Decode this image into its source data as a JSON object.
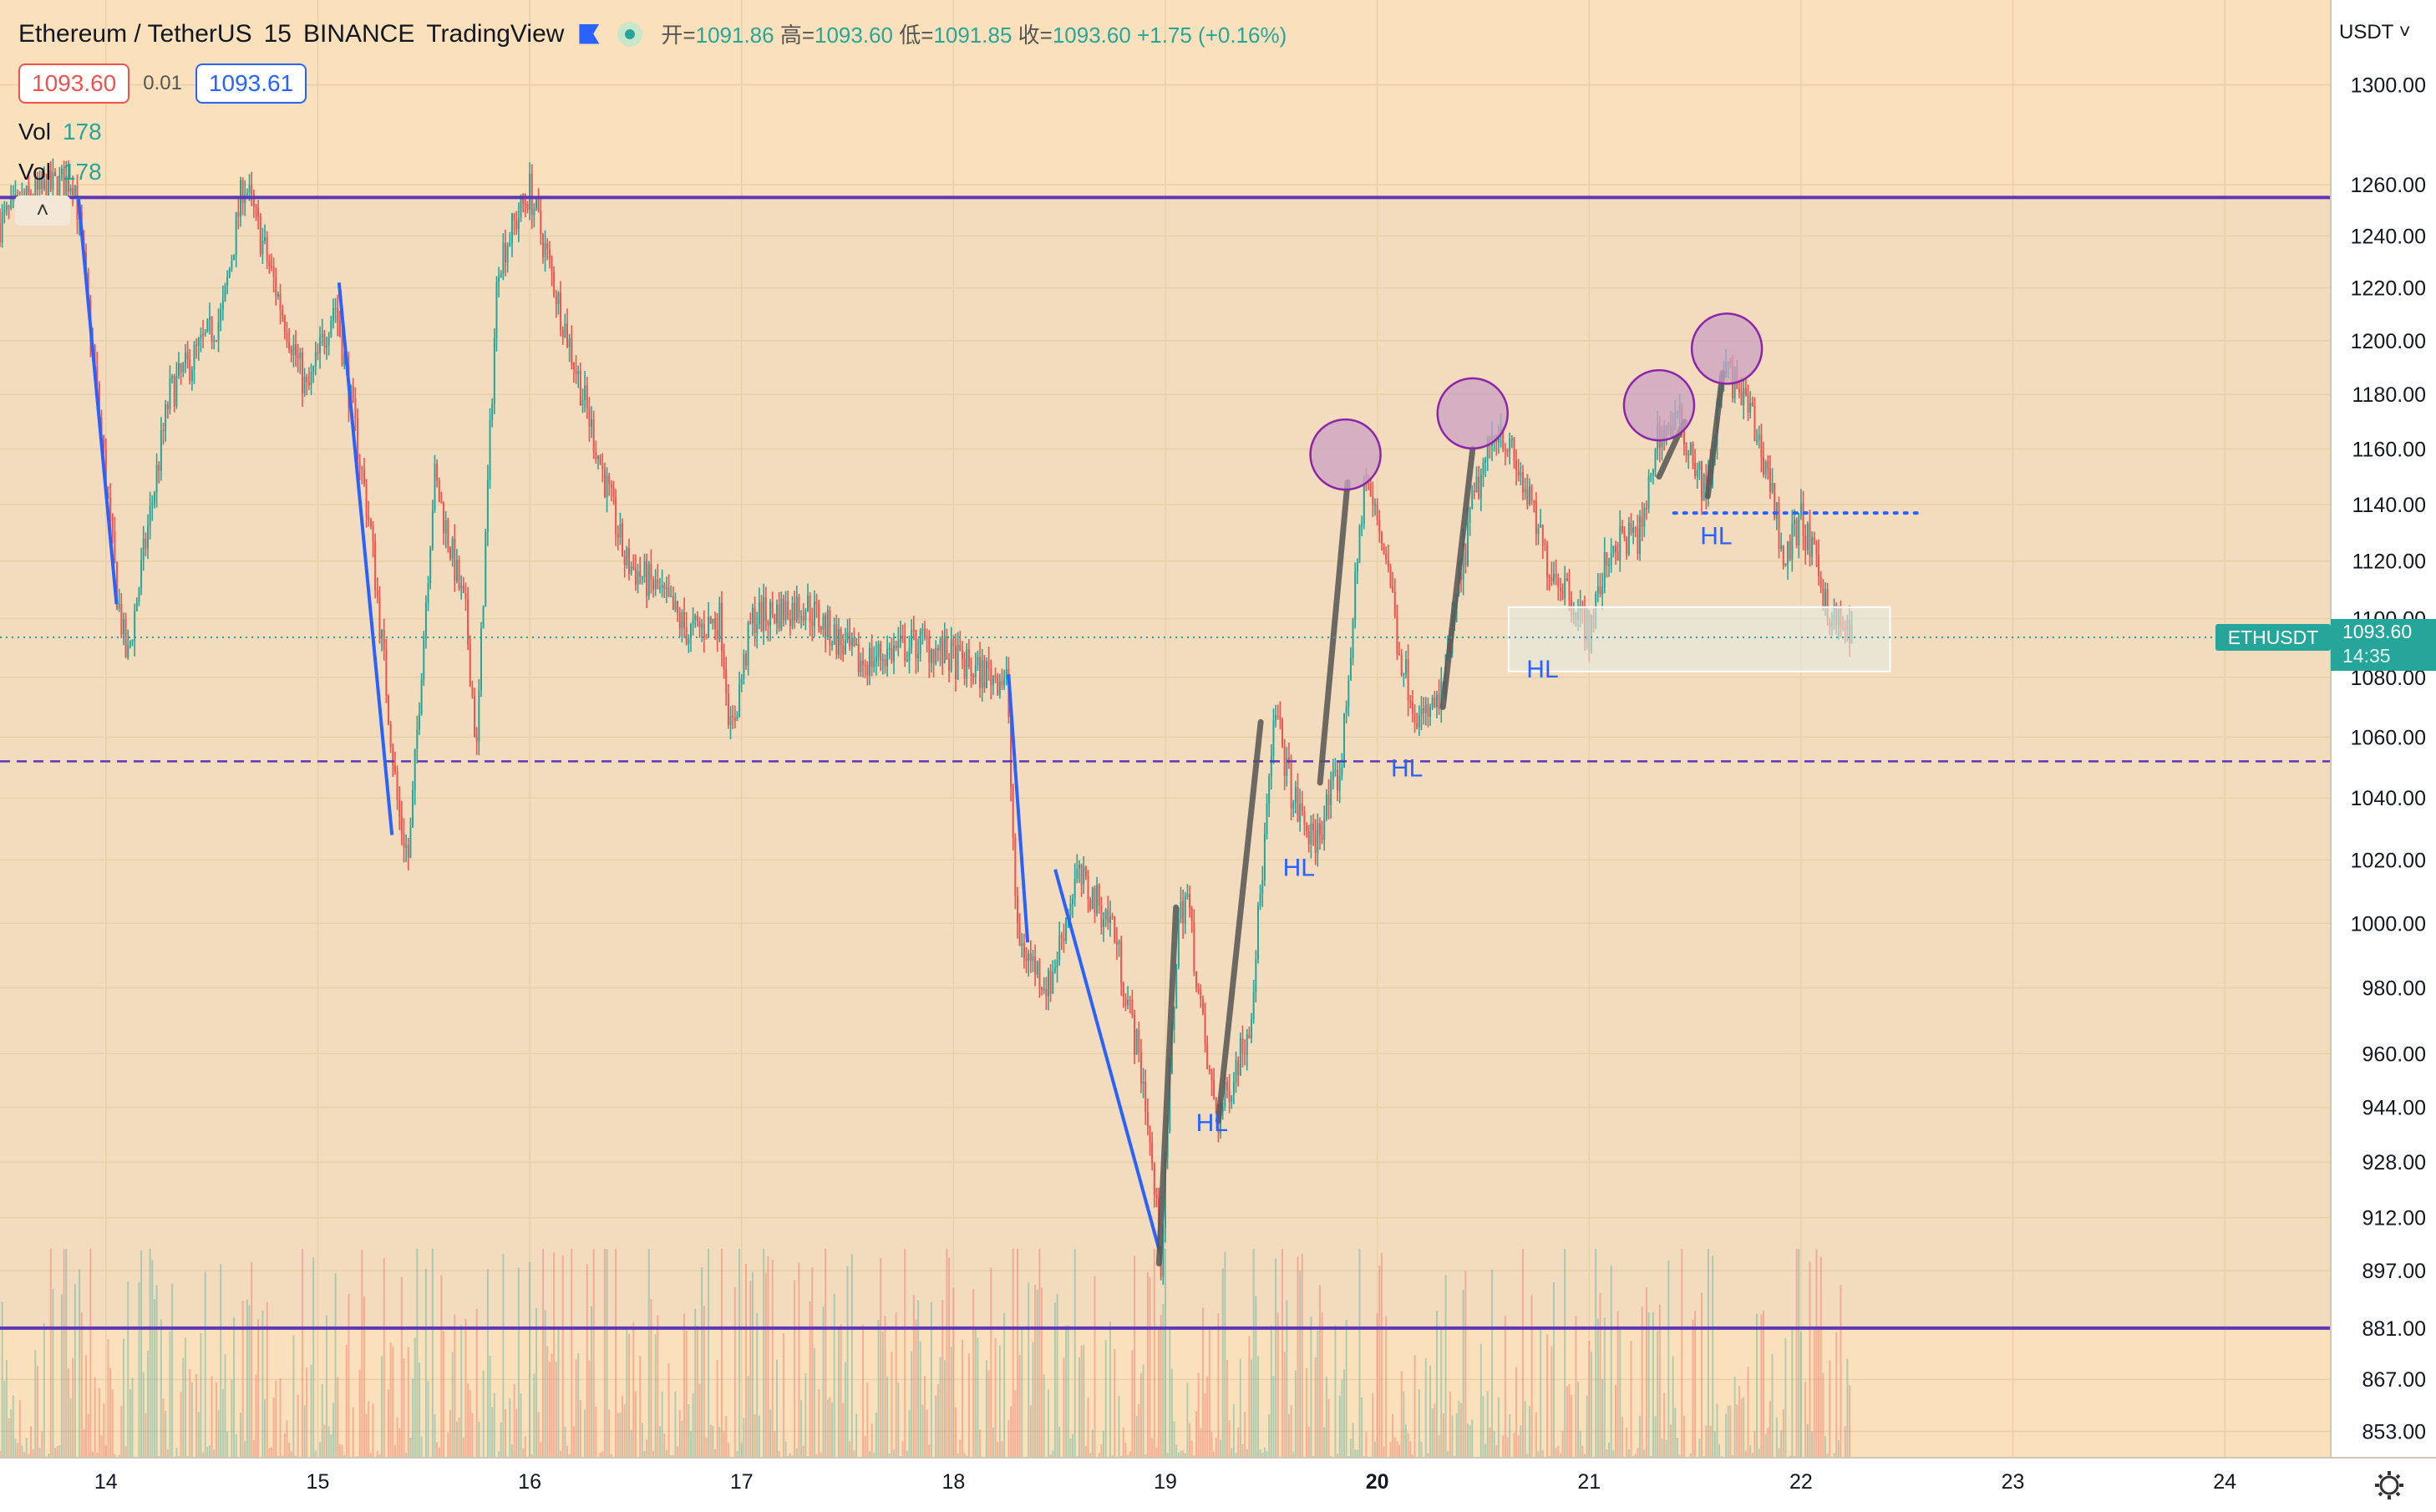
{
  "header": {
    "symbol": "Ethereum / TetherUS",
    "interval": "15",
    "exchange": "BINANCE",
    "brand": "TradingView",
    "open_label": "开=",
    "open": "1091.86",
    "high_label": "高=",
    "high": "1093.60",
    "low_label": "低=",
    "low": "1091.85",
    "close_label": "收=",
    "close": "1093.60",
    "change": "+1.75 (+0.16%)"
  },
  "quote": {
    "bid": "1093.60",
    "spread": "0.01",
    "ask": "1093.61"
  },
  "volume_rows": [
    {
      "label": "Vol",
      "value": "178"
    },
    {
      "label": "Vol",
      "value": "178"
    }
  ],
  "collapse_icon": "chevron-up-icon",
  "currency_menu": "USDT",
  "settings_icon": "gear-icon",
  "price_label": {
    "symbol": "ETHUSDT",
    "price": "1093.60",
    "countdown": "14:35"
  },
  "colors": {
    "background": "#fce0b8",
    "up": "#26a69a",
    "down": "#ef5350",
    "level_line": "#5c37b8",
    "trend_line": "#2962ff",
    "impulse_line": "#555555",
    "circle_fill": "#c9a1c3",
    "circle_stroke": "#8e24aa"
  },
  "chart_data": {
    "type": "candlestick",
    "y_scale": "log",
    "ylim": [
      846,
      1335
    ],
    "x_ticks": [
      "14",
      "15",
      "16",
      "17",
      "18",
      "19",
      "20",
      "21",
      "22",
      "23",
      "24"
    ],
    "x_tick_bold": "20",
    "y_ticks": [
      "1300.00",
      "1260.00",
      "1240.00",
      "1220.00",
      "1200.00",
      "1180.00",
      "1160.00",
      "1140.00",
      "1120.00",
      "1100.00",
      "1080.00",
      "1060.00",
      "1040.00",
      "1020.00",
      "1000.00",
      "980.00",
      "960.00",
      "944.00",
      "928.00",
      "912.00",
      "897.00",
      "881.00",
      "867.00",
      "853.00"
    ],
    "x_domain_days": [
      13.5,
      24.5
    ],
    "price_path": [
      [
        13.5,
        1245
      ],
      [
        13.65,
        1255
      ],
      [
        13.85,
        1263
      ],
      [
        14.05,
        1110
      ],
      [
        14.1,
        1085
      ],
      [
        14.3,
        1180
      ],
      [
        14.55,
        1210
      ],
      [
        14.65,
        1262
      ],
      [
        14.8,
        1220
      ],
      [
        14.95,
        1180
      ],
      [
        15.08,
        1215
      ],
      [
        15.25,
        1130
      ],
      [
        15.38,
        1035
      ],
      [
        15.43,
        1020
      ],
      [
        15.55,
        1150
      ],
      [
        15.7,
        1100
      ],
      [
        15.75,
        1055
      ],
      [
        15.85,
        1230
      ],
      [
        16.0,
        1258
      ],
      [
        16.15,
        1210
      ],
      [
        16.35,
        1150
      ],
      [
        16.45,
        1120
      ],
      [
        16.6,
        1110
      ],
      [
        16.75,
        1095
      ],
      [
        16.9,
        1100
      ],
      [
        16.95,
        1060
      ],
      [
        17.05,
        1100
      ],
      [
        17.3,
        1105
      ],
      [
        17.55,
        1085
      ],
      [
        17.85,
        1092
      ],
      [
        18.1,
        1082
      ],
      [
        18.25,
        1080
      ],
      [
        18.3,
        995
      ],
      [
        18.45,
        980
      ],
      [
        18.58,
        1015
      ],
      [
        18.75,
        1000
      ],
      [
        18.9,
        950
      ],
      [
        18.98,
        899
      ],
      [
        19.06,
        1000
      ],
      [
        19.1,
        1010
      ],
      [
        19.2,
        955
      ],
      [
        19.25,
        940
      ],
      [
        19.4,
        970
      ],
      [
        19.52,
        1068
      ],
      [
        19.6,
        1040
      ],
      [
        19.7,
        1025
      ],
      [
        19.83,
        1050
      ],
      [
        19.94,
        1150
      ],
      [
        20.05,
        1120
      ],
      [
        20.1,
        1090
      ],
      [
        20.2,
        1065
      ],
      [
        20.3,
        1072
      ],
      [
        20.45,
        1140
      ],
      [
        20.57,
        1170
      ],
      [
        20.7,
        1145
      ],
      [
        20.8,
        1120
      ],
      [
        20.9,
        1110
      ],
      [
        21.0,
        1095
      ],
      [
        21.1,
        1125
      ],
      [
        21.25,
        1130
      ],
      [
        21.32,
        1165
      ],
      [
        21.42,
        1170
      ],
      [
        21.48,
        1160
      ],
      [
        21.55,
        1143
      ],
      [
        21.64,
        1190
      ],
      [
        21.75,
        1175
      ],
      [
        21.85,
        1150
      ],
      [
        21.92,
        1120
      ],
      [
        22.0,
        1135
      ],
      [
        22.08,
        1115
      ],
      [
        22.15,
        1100
      ],
      [
        22.25,
        1093.6
      ]
    ],
    "volume_max": 300,
    "horizontal_levels": [
      {
        "price": 1255,
        "style": "solid"
      },
      {
        "price": 881,
        "style": "solid"
      },
      {
        "price": 1052,
        "style": "dashed"
      },
      {
        "price": 1137,
        "style": "dotted",
        "from": 21.4,
        "to": 22.55
      }
    ],
    "down_trend_lines": [
      [
        [
          13.87,
          1255
        ],
        [
          14.05,
          1105
        ]
      ],
      [
        [
          15.1,
          1222
        ],
        [
          15.35,
          1028
        ]
      ],
      [
        [
          18.26,
          1081
        ],
        [
          18.35,
          994
        ]
      ],
      [
        [
          18.48,
          1017
        ],
        [
          18.97,
          903
        ]
      ]
    ],
    "impulse_legs": [
      [
        [
          18.97,
          899
        ],
        [
          19.05,
          1005
        ]
      ],
      [
        [
          19.25,
          940
        ],
        [
          19.45,
          1065
        ]
      ],
      [
        [
          19.73,
          1045
        ],
        [
          19.86,
          1148
        ]
      ],
      [
        [
          20.31,
          1070
        ],
        [
          20.45,
          1160
        ]
      ],
      [
        [
          21.33,
          1150
        ],
        [
          21.45,
          1170
        ]
      ],
      [
        [
          21.56,
          1143
        ],
        [
          21.63,
          1188
        ]
      ]
    ],
    "peak_circles": [
      {
        "x": 19.85,
        "price": 1158
      },
      {
        "x": 20.45,
        "price": 1173
      },
      {
        "x": 21.33,
        "price": 1176
      },
      {
        "x": 21.65,
        "price": 1197
      }
    ],
    "annotations": [
      {
        "text": "HL",
        "x": 19.22,
        "price": 937
      },
      {
        "text": "HL",
        "x": 19.63,
        "price": 1015
      },
      {
        "text": "HL",
        "x": 20.14,
        "price": 1047
      },
      {
        "text": "HL",
        "x": 20.78,
        "price": 1080
      },
      {
        "text": "HL",
        "x": 21.6,
        "price": 1126
      }
    ],
    "zone": {
      "x_from": 20.62,
      "x_to": 22.42,
      "price_low": 1082,
      "price_high": 1104
    },
    "last_price": 1093.6
  }
}
